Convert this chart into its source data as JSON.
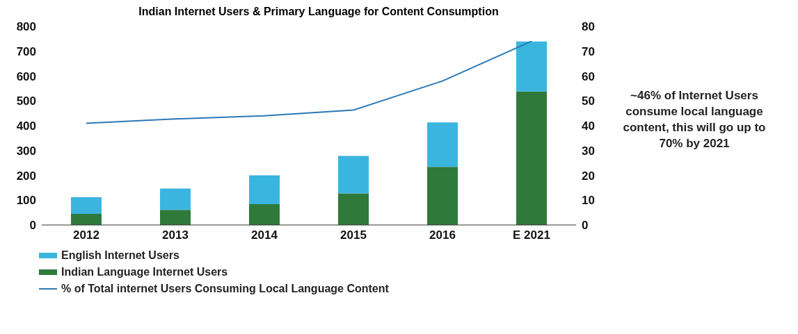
{
  "chart_data": {
    "type": "bar",
    "title": "Indian Internet Users & Primary Language for Content Consumption",
    "categories": [
      "2012",
      "2013",
      "2014",
      "2015",
      "2016",
      "E 2021"
    ],
    "stacked": true,
    "series": [
      {
        "name": "Indian Language Internet Users",
        "color": "#2f7a3b",
        "values": [
          45,
          61,
          84,
          127,
          234,
          538
        ]
      },
      {
        "name": "English Internet Users",
        "color": "#3ab5e0",
        "values": [
          67,
          86,
          116,
          151,
          179,
          201
        ]
      },
      {
        "name": "% of Total internet Users Consuming Local Language Content",
        "type": "line",
        "axis": "y2",
        "color": "#2b78b8",
        "values": [
          41,
          42.7,
          44,
          46.3,
          58,
          74
        ]
      }
    ],
    "ylim": [
      0,
      800
    ],
    "yticks": [
      0,
      100,
      200,
      300,
      400,
      500,
      600,
      700,
      800
    ],
    "y2lim": [
      0,
      80
    ],
    "y2ticks": [
      0,
      10,
      20,
      30,
      40,
      50,
      60,
      70,
      80
    ],
    "grid": false,
    "legend": "bottom left",
    "marker": "none",
    "line_style": "solid",
    "annotations": [
      "~46% of Internet Users consume local language content, this will go up to 70% by 2021"
    ]
  }
}
